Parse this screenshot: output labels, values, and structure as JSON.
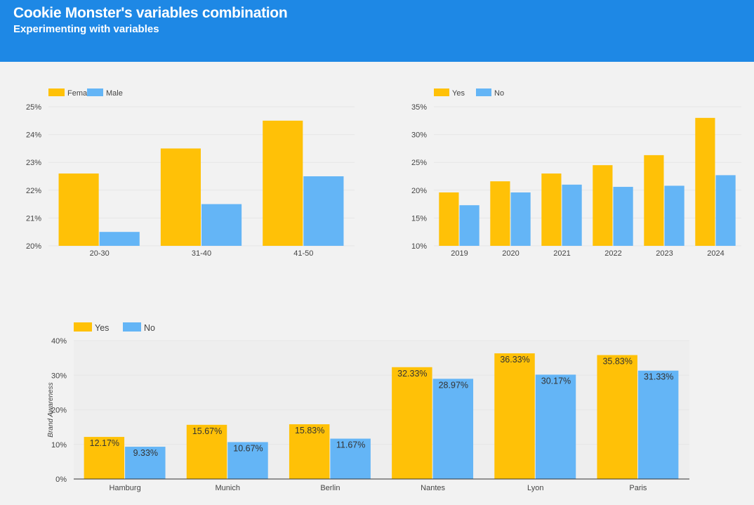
{
  "header": {
    "title": "Cookie Monster's variables combination",
    "subtitle": "Experimenting with variables"
  },
  "colors": {
    "header_bg": "#1e88e5",
    "series_a": "#ffc107",
    "series_b": "#64b5f6",
    "gridline": "#e6e6e6",
    "plot_bg": "#eeeeee"
  },
  "chart_data": [
    {
      "type": "bar",
      "categories": [
        "20-30",
        "31-40",
        "41-50"
      ],
      "series": [
        {
          "name": "Female",
          "values": [
            22.6,
            23.5,
            24.5
          ]
        },
        {
          "name": "Male",
          "values": [
            20.5,
            21.5,
            22.5
          ]
        }
      ],
      "ylim": [
        20,
        25
      ],
      "yticks": [
        20,
        21,
        22,
        23,
        24,
        25
      ],
      "ytick_suffix": "%",
      "ylabel": "",
      "legend": "top-left",
      "grid": true
    },
    {
      "type": "bar",
      "categories": [
        "2019",
        "2020",
        "2021",
        "2022",
        "2023",
        "2024"
      ],
      "series": [
        {
          "name": "Yes",
          "values": [
            19.6,
            21.6,
            23.0,
            24.5,
            26.3,
            33.0
          ]
        },
        {
          "name": "No",
          "values": [
            17.3,
            19.6,
            21.0,
            20.6,
            20.8,
            22.7
          ]
        }
      ],
      "ylim": [
        10,
        35
      ],
      "yticks": [
        10,
        15,
        20,
        25,
        30,
        35
      ],
      "ytick_suffix": "%",
      "ylabel": "",
      "legend": "top-left",
      "grid": true
    },
    {
      "type": "bar",
      "categories": [
        "Hamburg",
        "Munich",
        "Berlin",
        "Nantes",
        "Lyon",
        "Paris"
      ],
      "series": [
        {
          "name": "Yes",
          "values": [
            12.17,
            15.67,
            15.83,
            32.33,
            36.33,
            35.83
          ],
          "labels": [
            "12.17%",
            "15.67%",
            "15.83%",
            "32.33%",
            "36.33%",
            "35.83%"
          ]
        },
        {
          "name": "No",
          "values": [
            9.33,
            10.67,
            11.67,
            28.97,
            30.17,
            31.33
          ],
          "labels": [
            "9.33%",
            "10.67%",
            "11.67%",
            "28.97%",
            "30.17%",
            "31.33%"
          ]
        }
      ],
      "ylim": [
        0,
        40
      ],
      "yticks": [
        0,
        10,
        20,
        30,
        40
      ],
      "ytick_suffix": "%",
      "ylabel": "Brand Awareness",
      "legend": "top-left",
      "grid": true
    }
  ]
}
